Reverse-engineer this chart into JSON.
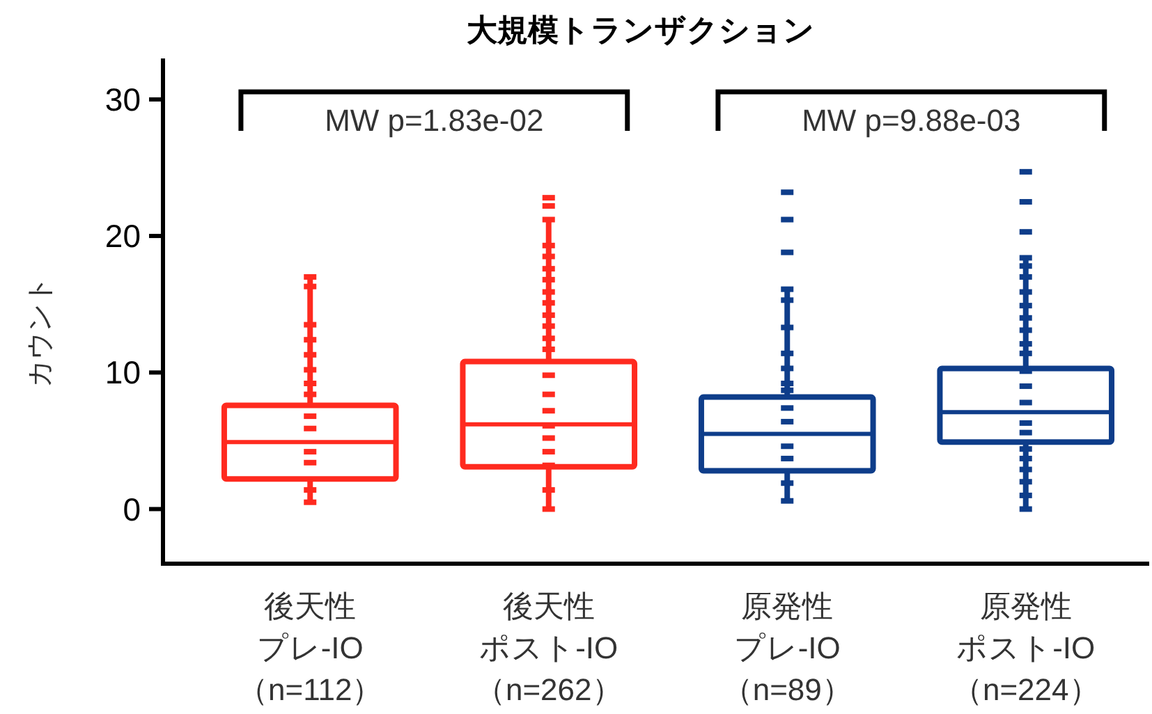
{
  "chart_data": {
    "type": "box",
    "title": "大規模トランザクション",
    "ylabel": "カウント",
    "categories": [
      "後天性プレ-IO（n=112）",
      "後天性ポスト-IO（n=262）",
      "原発性プレ-IO（n=89）",
      "原発性ポスト-IO（n=224）"
    ],
    "boxes": [
      {
        "low": 0.5,
        "q1": 2.2,
        "median": 4.9,
        "q3": 7.6,
        "high": 17.0
      },
      {
        "low": 0,
        "q1": 3.1,
        "median": 6.2,
        "q3": 10.8,
        "high": 21.2
      },
      {
        "low": 0.6,
        "q1": 2.8,
        "median": 5.5,
        "q3": 8.2,
        "high": 16.1
      },
      {
        "low": 0,
        "q1": 4.9,
        "median": 7.1,
        "q3": 10.3,
        "high": 18.4
      }
    ],
    "colors": [
      "#ff2a1f",
      "#ff2a1f",
      "#0e3d8a",
      "#0e3d8a"
    ],
    "series": [
      {
        "type": "scatter",
        "color": "#ff2a1f",
        "x": [
          "後天性プレ-IO（n=112）",
          "後天性プレ-IO（n=112）",
          "後天性プレ-IO（n=112）",
          "後天性プレ-IO（n=112）",
          "後天性プレ-IO（n=112）",
          "後天性プレ-IO（n=112）",
          "後天性プレ-IO（n=112）",
          "後天性プレ-IO（n=112）",
          "後天性プレ-IO（n=112）",
          "後天性プレ-IO（n=112）",
          "後天性プレ-IO（n=112）",
          "後天性プレ-IO（n=112）",
          "後天性プレ-IO（n=112）",
          "後天性プレ-IO（n=112）",
          "後天性ポスト-IO（n=262）",
          "後天性ポスト-IO（n=262）",
          "後天性ポスト-IO（n=262）",
          "後天性ポスト-IO（n=262）",
          "後天性ポスト-IO（n=262）",
          "後天性ポスト-IO（n=262）",
          "後天性ポスト-IO（n=262）",
          "後天性ポスト-IO（n=262）",
          "後天性ポスト-IO（n=262）",
          "後天性ポスト-IO（n=262）",
          "後天性ポスト-IO（n=262）",
          "後天性ポスト-IO（n=262）",
          "後天性ポスト-IO（n=262）",
          "後天性ポスト-IO（n=262）",
          "後天性ポスト-IO（n=262）",
          "後天性ポスト-IO（n=262）",
          "後天性ポスト-IO（n=262）",
          "後天性ポスト-IO（n=262）",
          "後天性ポスト-IO（n=262）",
          "後天性ポスト-IO（n=262）",
          "後天性ポスト-IO（n=262）",
          "後天性ポスト-IO（n=262）"
        ],
        "values": [
          17.0,
          16.3,
          13.5,
          12.4,
          11.3,
          10.2,
          9.2,
          8.4,
          6.8,
          5.9,
          4.2,
          3.4,
          1.4,
          0.5,
          22.8,
          22.2,
          21.2,
          19.3,
          18.5,
          17.6,
          16.8,
          15.9,
          15.1,
          14.2,
          13.4,
          12.5,
          11.7,
          9.8,
          8.4,
          7.2,
          6.1,
          5.2,
          4.2,
          3.2,
          1.4,
          0
        ]
      },
      {
        "type": "scatter",
        "color": "#0e3d8a",
        "x": [
          "原発性プレ-IO（n=89）",
          "原発性プレ-IO（n=89）",
          "原発性プレ-IO（n=89）",
          "原発性プレ-IO（n=89）",
          "原発性プレ-IO（n=89）",
          "原発性プレ-IO（n=89）",
          "原発性プレ-IO（n=89）",
          "原発性プレ-IO（n=89）",
          "原発性プレ-IO（n=89）",
          "原発性プレ-IO（n=89）",
          "原発性プレ-IO（n=89）",
          "原発性プレ-IO（n=89）",
          "原発性プレ-IO（n=89）",
          "原発性プレ-IO（n=89）",
          "原発性プレ-IO（n=89）",
          "原発性プレ-IO（n=89）",
          "原発性ポスト-IO（n=224）",
          "原発性ポスト-IO（n=224）",
          "原発性ポスト-IO（n=224）",
          "原発性ポスト-IO（n=224）",
          "原発性ポスト-IO（n=224）",
          "原発性ポスト-IO（n=224）",
          "原発性ポスト-IO（n=224）",
          "原発性ポスト-IO（n=224）",
          "原発性ポスト-IO（n=224）",
          "原発性ポスト-IO（n=224）",
          "原発性ポスト-IO（n=224）",
          "原発性ポスト-IO（n=224）",
          "原発性ポスト-IO（n=224）",
          "原発性ポスト-IO（n=224）",
          "原発性ポスト-IO（n=224）",
          "原発性ポスト-IO（n=224）",
          "原発性ポスト-IO（n=224）",
          "原発性ポスト-IO（n=224）",
          "原発性ポスト-IO（n=224）",
          "原発性ポスト-IO（n=224）",
          "原発性ポスト-IO（n=224）",
          "原発性ポスト-IO（n=224）",
          "原発性ポスト-IO（n=224）"
        ],
        "values": [
          23.2,
          21.2,
          18.8,
          16.1,
          15.3,
          13.3,
          11.4,
          10.3,
          9.2,
          8.7,
          7.4,
          6.4,
          4.6,
          3.7,
          1.9,
          0.6,
          24.7,
          22.5,
          20.3,
          18.4,
          17.8,
          17.0,
          15.9,
          14.9,
          14.0,
          13.1,
          12.1,
          11.4,
          10.1,
          9.0,
          7.8,
          6.3,
          5.6,
          4.4,
          3.7,
          2.9,
          2.0,
          1.0,
          0
        ]
      }
    ],
    "annotations": [
      "MW p=1.83e-02",
      "MW p=9.88e-03"
    ],
    "ylim": [
      -4,
      33
    ],
    "yticks": [
      0,
      10,
      20,
      30
    ]
  }
}
